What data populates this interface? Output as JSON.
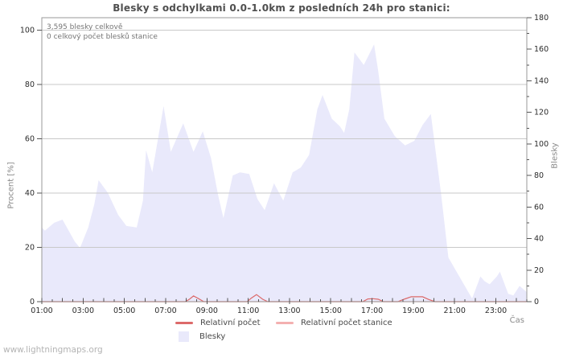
{
  "watermark": "www.lightningmaps.org",
  "chart_data": {
    "type": "area",
    "title": "Blesky s odchylkami 0.0-1.0km z posledních 24h pro stanici:",
    "annotations": [
      "3,595 blesky celkově",
      "0 celkový počet blesků stanice"
    ],
    "x": {
      "label": "Čas",
      "min_hour": 1,
      "max_hour": 24.5,
      "major_tick_hours": [
        1,
        3,
        5,
        7,
        9,
        11,
        13,
        15,
        17,
        19,
        21,
        23
      ],
      "major_tick_labels": [
        "01:00",
        "03:00",
        "05:00",
        "07:00",
        "09:00",
        "11:00",
        "13:00",
        "15:00",
        "17:00",
        "19:00",
        "21:00",
        "23:00"
      ],
      "minor_tick_step": 0.5
    },
    "y_left": {
      "label": "Procent [%]",
      "min": 0,
      "max": 100,
      "ticks": [
        0,
        20,
        40,
        60,
        80,
        100
      ]
    },
    "y_right": {
      "label": "Blesky",
      "min": 0,
      "max": 180,
      "ticks": [
        0,
        20,
        40,
        60,
        80,
        100,
        120,
        140,
        160,
        180
      ],
      "minor_step": 10
    },
    "grid": {
      "horizontal_at_left_pct": [
        20,
        40,
        60,
        80,
        100
      ],
      "color": "#c9c9c9",
      "frame_color": "#999999"
    },
    "series": [
      {
        "name": "Blesky",
        "type": "area",
        "axis": "right",
        "color": "#e9e9fb",
        "points": [
          [
            1.0,
            47
          ],
          [
            1.15,
            45
          ],
          [
            1.6,
            50
          ],
          [
            2.0,
            52
          ],
          [
            2.3,
            45
          ],
          [
            2.6,
            38
          ],
          [
            2.85,
            34
          ],
          [
            3.25,
            47
          ],
          [
            3.55,
            62
          ],
          [
            3.75,
            77
          ],
          [
            4.2,
            69
          ],
          [
            4.7,
            55
          ],
          [
            5.1,
            48
          ],
          [
            5.6,
            47
          ],
          [
            5.9,
            64
          ],
          [
            6.05,
            96
          ],
          [
            6.35,
            82
          ],
          [
            6.9,
            124
          ],
          [
            7.25,
            95
          ],
          [
            7.85,
            113
          ],
          [
            8.35,
            95
          ],
          [
            8.8,
            108
          ],
          [
            9.2,
            91
          ],
          [
            9.55,
            67
          ],
          [
            9.8,
            53
          ],
          [
            10.25,
            80
          ],
          [
            10.6,
            82
          ],
          [
            11.05,
            81
          ],
          [
            11.45,
            65
          ],
          [
            11.8,
            58
          ],
          [
            12.25,
            75
          ],
          [
            12.7,
            64
          ],
          [
            13.15,
            82
          ],
          [
            13.55,
            85
          ],
          [
            13.95,
            93
          ],
          [
            14.35,
            122
          ],
          [
            14.6,
            131
          ],
          [
            15.05,
            116
          ],
          [
            15.45,
            111
          ],
          [
            15.65,
            107
          ],
          [
            15.9,
            122
          ],
          [
            16.15,
            158
          ],
          [
            16.6,
            150
          ],
          [
            17.1,
            163
          ],
          [
            17.3,
            146
          ],
          [
            17.6,
            116
          ],
          [
            18.1,
            105
          ],
          [
            18.6,
            99
          ],
          [
            19.05,
            102
          ],
          [
            19.45,
            112
          ],
          [
            19.85,
            119
          ],
          [
            20.35,
            68
          ],
          [
            20.7,
            28
          ],
          [
            21.05,
            20
          ],
          [
            21.45,
            11
          ],
          [
            21.85,
            2
          ],
          [
            22.25,
            16
          ],
          [
            22.45,
            13
          ],
          [
            22.7,
            11
          ],
          [
            23.05,
            16
          ],
          [
            23.2,
            19
          ],
          [
            23.6,
            5
          ],
          [
            23.85,
            4
          ],
          [
            24.15,
            10
          ],
          [
            24.5,
            6
          ]
        ]
      },
      {
        "name": "Relativní počet",
        "type": "line",
        "axis": "left",
        "color": "#dc6a6a",
        "points": [
          [
            1.0,
            0
          ],
          [
            7.95,
            0
          ],
          [
            8.15,
            0.9
          ],
          [
            8.35,
            2.1
          ],
          [
            8.6,
            1.1
          ],
          [
            8.85,
            0
          ],
          [
            10.95,
            0
          ],
          [
            11.15,
            1.3
          ],
          [
            11.4,
            2.6
          ],
          [
            11.7,
            0.9
          ],
          [
            11.95,
            0
          ],
          [
            16.55,
            0
          ],
          [
            16.8,
            1.0
          ],
          [
            17.05,
            1.1
          ],
          [
            17.3,
            0.9
          ],
          [
            17.55,
            0
          ],
          [
            18.25,
            0
          ],
          [
            18.55,
            0.9
          ],
          [
            18.9,
            1.8
          ],
          [
            19.45,
            1.8
          ],
          [
            19.75,
            0.8
          ],
          [
            20.05,
            0
          ],
          [
            24.5,
            0
          ]
        ]
      },
      {
        "name": "Relativní počet stanice",
        "type": "line",
        "axis": "left",
        "color": "#f3b0b0",
        "points": [
          [
            1.0,
            0
          ],
          [
            24.5,
            0
          ]
        ]
      }
    ]
  }
}
